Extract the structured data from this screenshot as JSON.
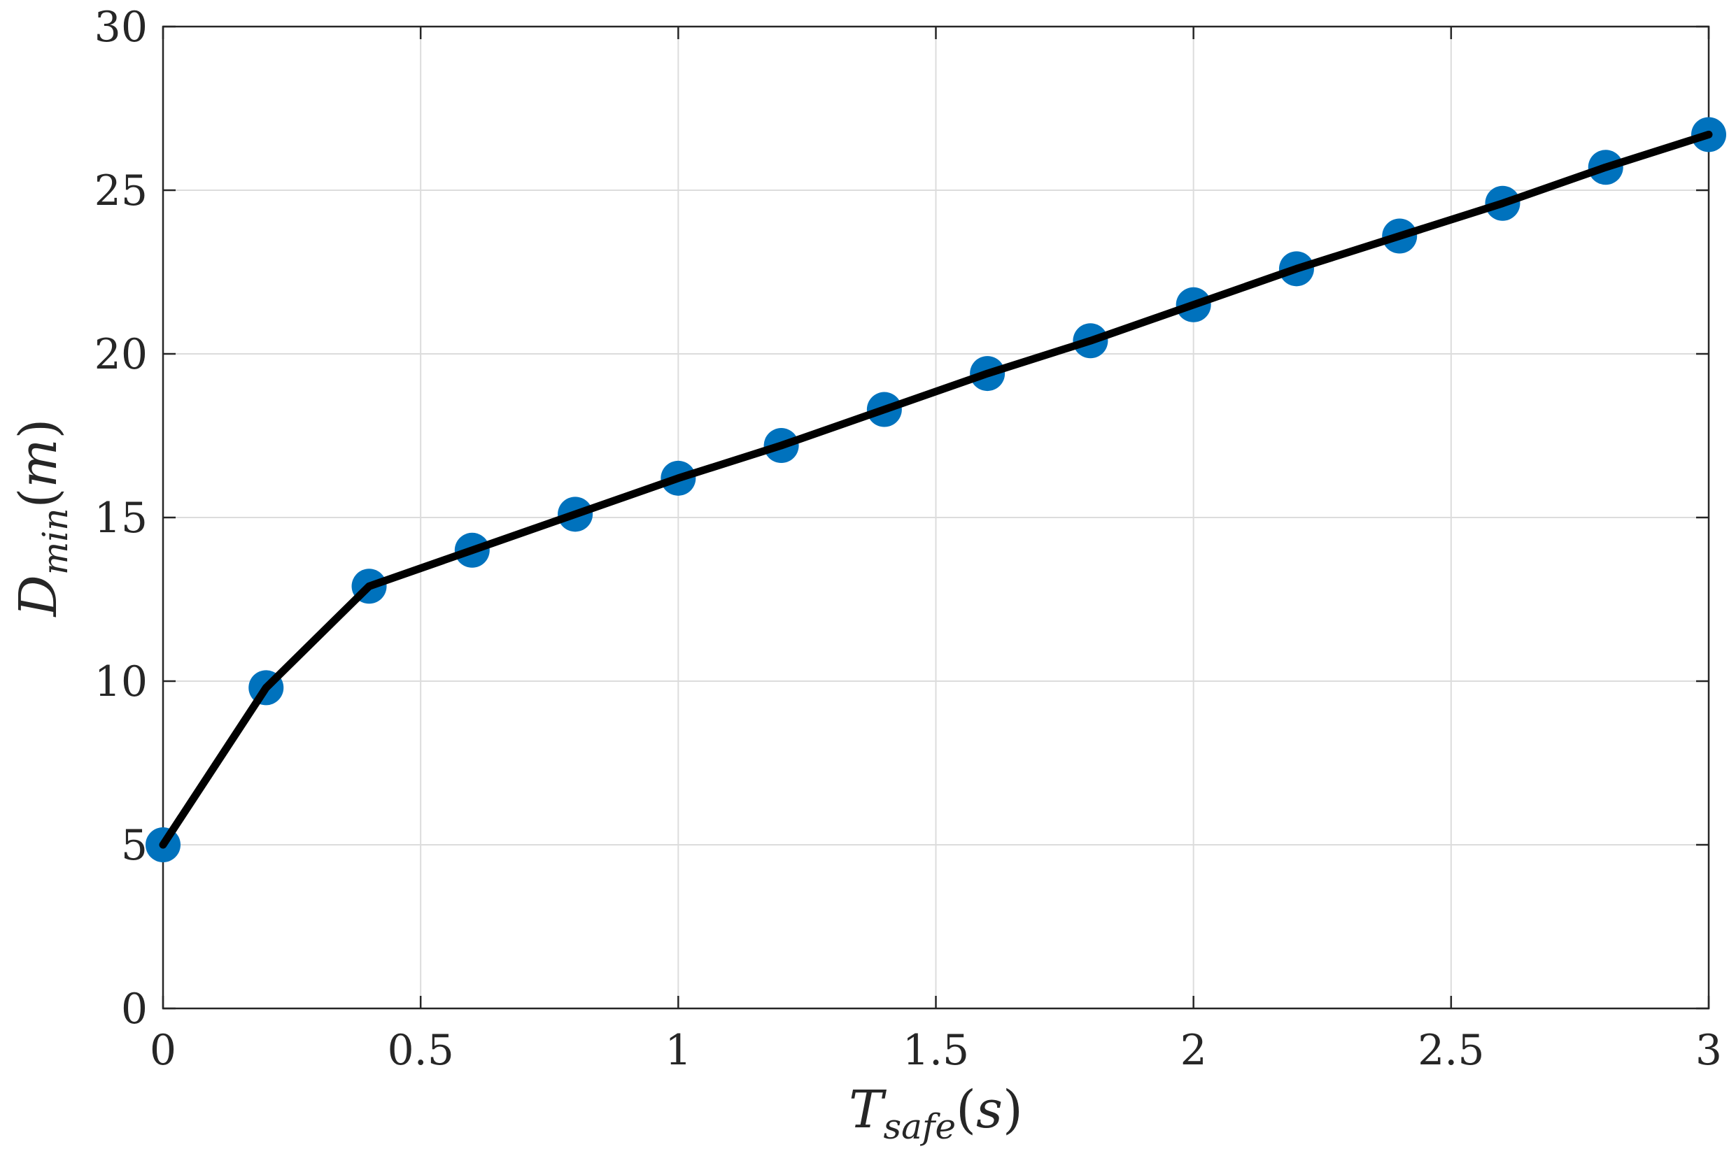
{
  "chart_data": {
    "type": "line",
    "title": "",
    "xlabel": {
      "main": "T",
      "sub": "safe",
      "paren_open": "(",
      "unit": "s",
      "paren_close": ")"
    },
    "ylabel": {
      "main": "D",
      "sub": "min",
      "paren_open": "(",
      "unit": "m",
      "paren_close": ")"
    },
    "xlim": [
      0,
      3
    ],
    "ylim": [
      0,
      30
    ],
    "xticks": [
      0,
      0.5,
      1,
      1.5,
      2,
      2.5,
      3
    ],
    "xtick_labels": [
      "0",
      "0.5",
      "1",
      "1.5",
      "2",
      "2.5",
      "3"
    ],
    "yticks": [
      0,
      5,
      10,
      15,
      20,
      25,
      30
    ],
    "ytick_labels": [
      "0",
      "5",
      "10",
      "15",
      "20",
      "25",
      "30"
    ],
    "grid": true,
    "legend": "none",
    "series": [
      {
        "x": [
          0,
          0.2,
          0.4,
          0.6,
          0.8,
          1.0,
          1.2,
          1.4,
          1.6,
          1.8,
          2.0,
          2.2,
          2.4,
          2.6,
          2.8,
          3.0
        ],
        "y": [
          5.0,
          9.8,
          12.9,
          14.0,
          15.1,
          16.2,
          17.2,
          18.3,
          19.4,
          20.4,
          21.5,
          22.6,
          23.6,
          24.6,
          25.7,
          26.7
        ],
        "marker_color": "#0072BD",
        "line_color": "#000000"
      }
    ]
  }
}
